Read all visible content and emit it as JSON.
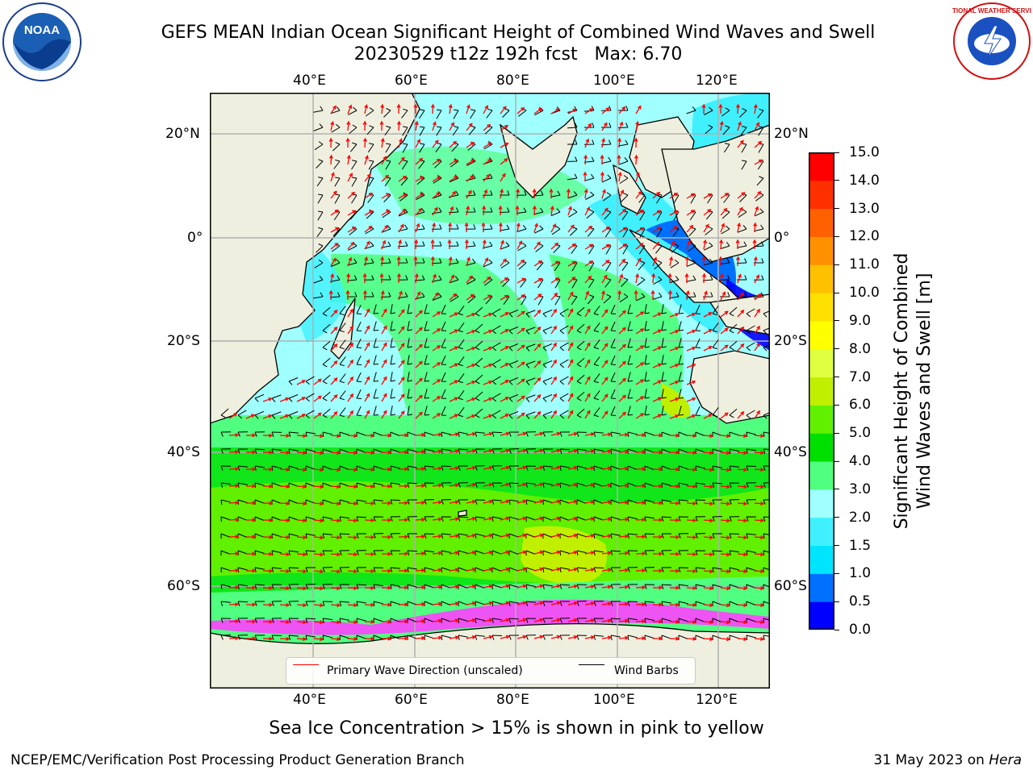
{
  "header": {
    "title_line1": "GEFS MEAN Indian Ocean Significant Height of Combined Wind Waves and Swell",
    "title_line2": "20230529 t12z 192h fcst   Max: 6.70",
    "left_logo": "noara-logo",
    "left_logo_text": "NOAA",
    "right_logo": "nws-logo",
    "right_logo_text": "NATIONAL WEATHER SERVICE"
  },
  "map": {
    "lon_ticks_top": [
      "40°E",
      "60°E",
      "80°E",
      "100°E",
      "120°E"
    ],
    "lon_ticks_bottom": [
      "40°E",
      "60°E",
      "80°E",
      "100°E",
      "120°E"
    ],
    "lat_ticks_left": [
      "20°N",
      "0°",
      "20°S",
      "40°S",
      "60°S"
    ],
    "lat_ticks_right": [
      "20°N",
      "0°",
      "20°S",
      "40°S",
      "60°S"
    ],
    "land_color": "#efefdf",
    "grid_color": "#b0b0b0"
  },
  "legend": {
    "wave_direction_label": "Primary Wave Direction (unscaled)",
    "wave_direction_color": "#ff0000",
    "wind_barbs_label": "Wind Barbs",
    "wind_barbs_color": "#000000"
  },
  "colorbar": {
    "label_line1": "Significant Height of Combined",
    "label_line2": "Wind Waves and Swell [m]",
    "ticks": [
      "0.0",
      "0.5",
      "1.0",
      "1.5",
      "2.0",
      "3.0",
      "4.0",
      "5.0",
      "6.0",
      "7.0",
      "8.0",
      "9.0",
      "10.0",
      "11.0",
      "12.0",
      "13.0",
      "14.0",
      "15.0"
    ],
    "colors": [
      "#0000ff",
      "#0070ff",
      "#00e5ff",
      "#40f0ff",
      "#a0ffff",
      "#50ff80",
      "#00e000",
      "#60f000",
      "#c0f000",
      "#e0ff40",
      "#ffff00",
      "#ffe000",
      "#ffc000",
      "#ff9000",
      "#ff6000",
      "#ff3000",
      "#ff0000"
    ]
  },
  "notes": {
    "sea_ice": "Sea Ice Concentration > 15% is shown in pink to yellow"
  },
  "footer": {
    "left": "NCEP/EMC/Verification Post Processing Product Generation Branch",
    "right_date": "31 May 2023 on ",
    "right_host": "Hera"
  }
}
